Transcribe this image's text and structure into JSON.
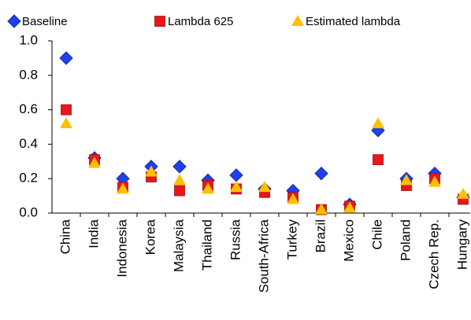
{
  "chart_data": {
    "type": "scatter",
    "categories": [
      "China",
      "India",
      "Indonesia",
      "Korea",
      "Malaysia",
      "Thailand",
      "Russia",
      "South-Africa",
      "Turkey",
      "Brazil",
      "Mexico",
      "Chile",
      "Poland",
      "Czech Rep.",
      "Hungary"
    ],
    "series": [
      {
        "name": "Baseline",
        "color": "#1f3ff0",
        "marker": "diamond",
        "values": [
          0.9,
          0.32,
          0.2,
          0.27,
          0.27,
          0.19,
          0.22,
          0.14,
          0.13,
          0.23,
          0.05,
          0.48,
          0.2,
          0.23,
          0.09
        ]
      },
      {
        "name": "Lambda 625",
        "color": "#e8161c",
        "marker": "square",
        "values": [
          0.6,
          0.31,
          0.15,
          0.21,
          0.13,
          0.16,
          0.14,
          0.12,
          0.09,
          0.02,
          0.04,
          0.31,
          0.16,
          0.2,
          0.08
        ]
      },
      {
        "name": "Estimated lambda",
        "color": "#ffc000",
        "marker": "triangle",
        "values": [
          0.52,
          0.29,
          0.14,
          0.24,
          0.19,
          0.14,
          0.15,
          0.15,
          0.08,
          0.02,
          0.03,
          0.52,
          0.19,
          0.18,
          0.11
        ]
      }
    ],
    "ylim": [
      0,
      1.0
    ],
    "yticks": [
      {
        "value": 0,
        "label": "0.0"
      },
      0.2,
      0.4,
      0.6,
      0.8,
      {
        "value": 1.0,
        "label": "1.0"
      }
    ],
    "legend": "top"
  }
}
